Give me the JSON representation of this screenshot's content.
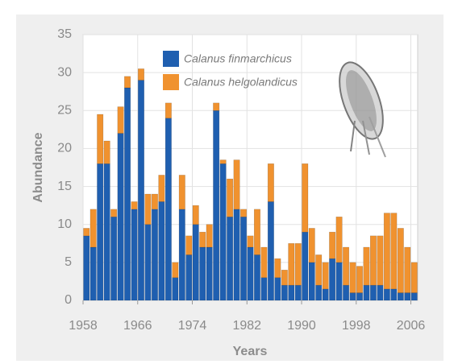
{
  "chart_data": {
    "type": "stacked_bar",
    "x_label": "Years",
    "y_label": "Abundance",
    "x": [
      1958,
      1959,
      1960,
      1961,
      1962,
      1963,
      1964,
      1965,
      1966,
      1967,
      1968,
      1969,
      1970,
      1971,
      1972,
      1973,
      1974,
      1975,
      1976,
      1977,
      1978,
      1979,
      1980,
      1981,
      1982,
      1983,
      1984,
      1985,
      1986,
      1987,
      1988,
      1989,
      1990,
      1991,
      1992,
      1993,
      1994,
      1995,
      1996,
      1997,
      1998,
      1999,
      2000,
      2001,
      2002,
      2003,
      2004,
      2005,
      2006
    ],
    "series": [
      {
        "name": "Calanus finmarchicus",
        "color": "#1f5fb0",
        "values": [
          8.5,
          7,
          18,
          18,
          11,
          22,
          28,
          12,
          29,
          10,
          12,
          13,
          24,
          3,
          12,
          6,
          10,
          7,
          7,
          25,
          18,
          11,
          12,
          11,
          7,
          6,
          3,
          13,
          3,
          2,
          2,
          2,
          9,
          5,
          2,
          1.5,
          5.5,
          5,
          2,
          1,
          1,
          2,
          2,
          2,
          1.5,
          1.5,
          1,
          1,
          1
        ]
      },
      {
        "name": "Calanus helgolandicus",
        "color": "#f0922f",
        "values": [
          1,
          5,
          6.5,
          3,
          1,
          3.5,
          1.5,
          1,
          1.5,
          4,
          2,
          3.5,
          2,
          2,
          4.5,
          2.5,
          2.5,
          2,
          3,
          1,
          0.5,
          5,
          6.5,
          1,
          1.5,
          6,
          4,
          5,
          2.5,
          2,
          5.5,
          5.5,
          9,
          4.5,
          4,
          3.5,
          3.5,
          6,
          5,
          4,
          3.5,
          5,
          6.5,
          6.5,
          10,
          10,
          8.5,
          6,
          4
        ]
      }
    ],
    "xlim": [
      1958,
      2007
    ],
    "xticks": [
      1958,
      1966,
      1974,
      1982,
      1990,
      1998,
      2006
    ],
    "ylim": [
      0,
      35
    ],
    "yticks": [
      0,
      5,
      10,
      15,
      20,
      25,
      30,
      35
    ],
    "grid": true
  }
}
